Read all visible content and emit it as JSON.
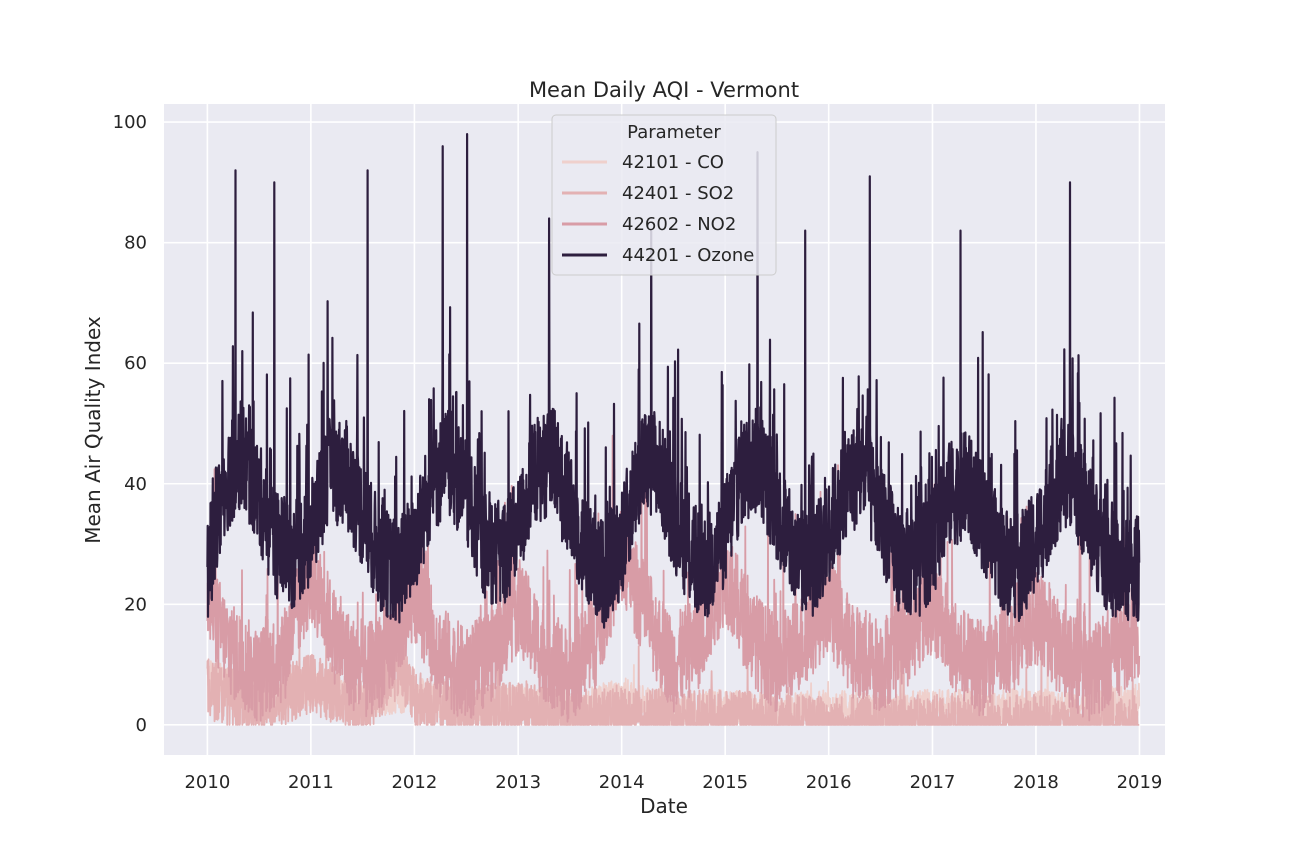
{
  "chart_data": {
    "type": "line",
    "title": "Mean Daily AQI - Vermont",
    "xlabel": "Date",
    "ylabel": "Mean Air Quality Index",
    "xlim": [
      "2009-08-01",
      "2019-04-01"
    ],
    "ylim": [
      -5,
      103
    ],
    "x_ticks": [
      "2010",
      "2011",
      "2012",
      "2013",
      "2014",
      "2015",
      "2016",
      "2017",
      "2018",
      "2019"
    ],
    "y_ticks": [
      0,
      20,
      40,
      60,
      80,
      100
    ],
    "grid": true,
    "legend": {
      "title": "Parameter",
      "placement": "top-center"
    },
    "plot_background": "#eaeaf2",
    "series": [
      {
        "name": "42101 - CO",
        "color": "#efd0cc",
        "points": [
          [
            "2010-01-01",
            8
          ],
          [
            "2010-07-01",
            5
          ],
          [
            "2011-01-01",
            6
          ],
          [
            "2011-07-01",
            4
          ],
          [
            "2012-01-01",
            5
          ],
          [
            "2012-07-01",
            3
          ],
          [
            "2013-01-01",
            4
          ],
          [
            "2013-07-01",
            2
          ],
          [
            "2014-01-01",
            5
          ],
          [
            "2014-07-01",
            2
          ],
          [
            "2015-01-01",
            3
          ],
          [
            "2015-07-01",
            2
          ],
          [
            "2016-01-01",
            3
          ],
          [
            "2016-07-01",
            2
          ],
          [
            "2017-01-01",
            3
          ],
          [
            "2017-07-01",
            3
          ],
          [
            "2018-01-01",
            3
          ],
          [
            "2018-07-01",
            3
          ],
          [
            "2018-12-31",
            4
          ]
        ]
      },
      {
        "name": "42401 - SO2",
        "color": "#e3b1b3",
        "points": [
          [
            "2010-01-01",
            6
          ],
          [
            "2010-07-01",
            3
          ],
          [
            "2011-01-01",
            7
          ],
          [
            "2011-07-01",
            3
          ],
          [
            "2011-11-15",
            10
          ],
          [
            "2012-01-01",
            4
          ],
          [
            "2012-07-01",
            2
          ],
          [
            "2013-01-01",
            2
          ],
          [
            "2013-07-01",
            1
          ],
          [
            "2014-01-01",
            1
          ],
          [
            "2014-07-01",
            1
          ],
          [
            "2015-01-01",
            1
          ],
          [
            "2015-07-01",
            0
          ],
          [
            "2016-01-01",
            0
          ],
          [
            "2016-07-01",
            0
          ],
          [
            "2017-01-01",
            0
          ],
          [
            "2017-07-01",
            0
          ],
          [
            "2018-01-01",
            0
          ],
          [
            "2018-07-01",
            0
          ],
          [
            "2018-12-31",
            0
          ]
        ]
      },
      {
        "name": "42602 - NO2",
        "color": "#d89ca6",
        "points": [
          [
            "2010-01-01",
            20
          ],
          [
            "2010-04-01",
            12
          ],
          [
            "2010-07-01",
            8
          ],
          [
            "2010-10-01",
            12
          ],
          [
            "2011-01-01",
            25
          ],
          [
            "2011-04-01",
            14
          ],
          [
            "2011-07-01",
            8
          ],
          [
            "2011-10-01",
            12
          ],
          [
            "2012-01-01",
            22
          ],
          [
            "2012-04-01",
            12
          ],
          [
            "2012-07-01",
            8
          ],
          [
            "2012-10-01",
            12
          ],
          [
            "2013-01-01",
            20
          ],
          [
            "2013-04-01",
            12
          ],
          [
            "2013-07-01",
            8
          ],
          [
            "2013-10-01",
            14
          ],
          [
            "2014-01-01",
            28
          ],
          [
            "2014-04-01",
            18
          ],
          [
            "2014-07-01",
            10
          ],
          [
            "2014-10-01",
            14
          ],
          [
            "2015-01-01",
            25
          ],
          [
            "2015-04-01",
            15
          ],
          [
            "2015-07-01",
            10
          ],
          [
            "2015-10-01",
            14
          ],
          [
            "2016-01-01",
            20
          ],
          [
            "2016-04-01",
            12
          ],
          [
            "2016-07-01",
            10
          ],
          [
            "2016-10-01",
            14
          ],
          [
            "2017-01-01",
            20
          ],
          [
            "2017-04-01",
            12
          ],
          [
            "2017-07-01",
            9
          ],
          [
            "2017-10-01",
            13
          ],
          [
            "2018-01-01",
            18
          ],
          [
            "2018-04-01",
            12
          ],
          [
            "2018-07-01",
            8
          ],
          [
            "2018-10-01",
            12
          ],
          [
            "2018-12-31",
            16
          ]
        ]
      },
      {
        "name": "44201 - Ozone",
        "color": "#2d1e3e",
        "points": [
          [
            "2010-01-01",
            25
          ],
          [
            "2010-03-01",
            40
          ],
          [
            "2010-05-01",
            45
          ],
          [
            "2010-07-01",
            38
          ],
          [
            "2010-09-01",
            30
          ],
          [
            "2010-11-01",
            28
          ],
          [
            "2011-01-01",
            32
          ],
          [
            "2011-03-01",
            42
          ],
          [
            "2011-05-01",
            42
          ],
          [
            "2011-07-01",
            35
          ],
          [
            "2011-09-01",
            28
          ],
          [
            "2011-11-01",
            25
          ],
          [
            "2012-01-01",
            30
          ],
          [
            "2012-03-01",
            40
          ],
          [
            "2012-05-01",
            44
          ],
          [
            "2012-07-01",
            38
          ],
          [
            "2012-09-01",
            30
          ],
          [
            "2012-11-01",
            28
          ],
          [
            "2013-01-01",
            32
          ],
          [
            "2013-03-01",
            42
          ],
          [
            "2013-05-01",
            44
          ],
          [
            "2013-07-01",
            36
          ],
          [
            "2013-09-01",
            28
          ],
          [
            "2013-11-01",
            25
          ],
          [
            "2014-01-01",
            30
          ],
          [
            "2014-03-01",
            42
          ],
          [
            "2014-05-01",
            44
          ],
          [
            "2014-07-01",
            35
          ],
          [
            "2014-09-01",
            28
          ],
          [
            "2014-11-01",
            26
          ],
          [
            "2015-01-01",
            32
          ],
          [
            "2015-03-01",
            42
          ],
          [
            "2015-05-01",
            44
          ],
          [
            "2015-07-01",
            36
          ],
          [
            "2015-09-01",
            28
          ],
          [
            "2015-11-01",
            26
          ],
          [
            "2016-01-01",
            32
          ],
          [
            "2016-03-01",
            40
          ],
          [
            "2016-05-01",
            42
          ],
          [
            "2016-07-01",
            35
          ],
          [
            "2016-09-01",
            28
          ],
          [
            "2016-11-01",
            26
          ],
          [
            "2017-01-01",
            30
          ],
          [
            "2017-03-01",
            38
          ],
          [
            "2017-05-01",
            40
          ],
          [
            "2017-07-01",
            34
          ],
          [
            "2017-09-01",
            28
          ],
          [
            "2017-11-01",
            26
          ],
          [
            "2018-01-01",
            30
          ],
          [
            "2018-03-01",
            38
          ],
          [
            "2018-05-01",
            42
          ],
          [
            "2018-07-01",
            35
          ],
          [
            "2018-09-01",
            28
          ],
          [
            "2018-11-01",
            25
          ],
          [
            "2018-12-31",
            26
          ]
        ],
        "peaks": [
          [
            "2010-04-10",
            92
          ],
          [
            "2010-08-25",
            90
          ],
          [
            "2011-07-20",
            92
          ],
          [
            "2012-04-10",
            96
          ],
          [
            "2012-07-05",
            98
          ],
          [
            "2013-04-20",
            84
          ],
          [
            "2014-04-15",
            82
          ],
          [
            "2015-04-25",
            95
          ],
          [
            "2015-10-10",
            82
          ],
          [
            "2016-05-25",
            91
          ],
          [
            "2017-04-10",
            82
          ],
          [
            "2018-05-01",
            90
          ]
        ]
      }
    ]
  }
}
